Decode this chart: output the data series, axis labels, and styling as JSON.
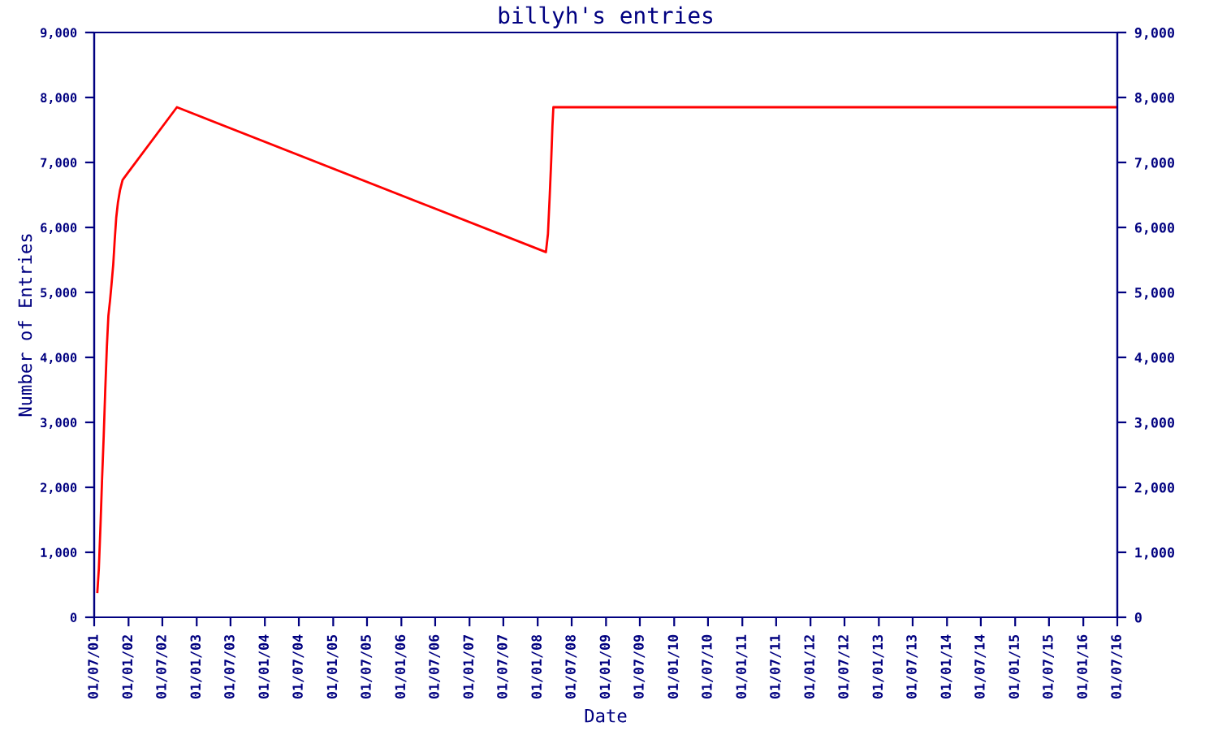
{
  "chart_data": {
    "type": "line",
    "title": "billyh's entries",
    "xlabel": "Date",
    "ylabel": "Number of Entries",
    "x": [
      "2001-07-18",
      "2001-07-26",
      "2001-08-04",
      "2001-08-12",
      "2001-08-21",
      "2001-08-29",
      "2001-09-07",
      "2001-09-15",
      "2001-09-24",
      "2001-10-02",
      "2001-10-11",
      "2001-10-19",
      "2001-10-27",
      "2001-11-05",
      "2001-11-16",
      "2001-11-30",
      "2001-12-23",
      "2002-09-17",
      "2008-02-14",
      "2008-02-25",
      "2008-03-05",
      "2008-03-13",
      "2008-03-20",
      "2008-03-25",
      "2016-07-01"
    ],
    "series": [
      {
        "color": "#ff0000",
        "values": [
          390,
          750,
          1430,
          2110,
          2790,
          3480,
          4170,
          4640,
          4880,
          5130,
          5430,
          5810,
          6150,
          6380,
          6570,
          6730,
          6820,
          7850,
          5620,
          5900,
          6460,
          7000,
          7560,
          7850,
          7850
        ]
      }
    ],
    "xlim": [
      "2001-07-01",
      "2016-07-01"
    ],
    "xticks": [
      {
        "value": "2001-07-01",
        "label": "01/07/01"
      },
      {
        "value": "2002-01-01",
        "label": "01/01/02"
      },
      {
        "value": "2002-07-01",
        "label": "01/07/02"
      },
      {
        "value": "2003-01-01",
        "label": "01/01/03"
      },
      {
        "value": "2003-07-01",
        "label": "01/07/03"
      },
      {
        "value": "2004-01-01",
        "label": "01/01/04"
      },
      {
        "value": "2004-07-01",
        "label": "01/07/04"
      },
      {
        "value": "2005-01-01",
        "label": "01/01/05"
      },
      {
        "value": "2005-07-01",
        "label": "01/07/05"
      },
      {
        "value": "2006-01-01",
        "label": "01/01/06"
      },
      {
        "value": "2006-07-01",
        "label": "01/07/06"
      },
      {
        "value": "2007-01-01",
        "label": "01/01/07"
      },
      {
        "value": "2007-07-01",
        "label": "01/07/07"
      },
      {
        "value": "2008-01-01",
        "label": "01/01/08"
      },
      {
        "value": "2008-07-01",
        "label": "01/07/08"
      },
      {
        "value": "2009-01-01",
        "label": "01/01/09"
      },
      {
        "value": "2009-07-01",
        "label": "01/07/09"
      },
      {
        "value": "2010-01-01",
        "label": "01/01/10"
      },
      {
        "value": "2010-07-01",
        "label": "01/07/10"
      },
      {
        "value": "2011-01-01",
        "label": "01/01/11"
      },
      {
        "value": "2011-07-01",
        "label": "01/07/11"
      },
      {
        "value": "2012-01-01",
        "label": "01/01/12"
      },
      {
        "value": "2012-07-01",
        "label": "01/07/12"
      },
      {
        "value": "2013-01-01",
        "label": "01/01/13"
      },
      {
        "value": "2013-07-01",
        "label": "01/07/13"
      },
      {
        "value": "2014-01-01",
        "label": "01/01/14"
      },
      {
        "value": "2014-07-01",
        "label": "01/07/14"
      },
      {
        "value": "2015-01-01",
        "label": "01/01/15"
      },
      {
        "value": "2015-07-01",
        "label": "01/07/15"
      },
      {
        "value": "2016-01-01",
        "label": "01/01/16"
      },
      {
        "value": "2016-07-01",
        "label": "01/07/16"
      }
    ],
    "ylim": [
      0,
      9000
    ],
    "yticks": [
      0,
      {
        "value": 1000,
        "label": "1,000"
      },
      {
        "value": 2000,
        "label": "2,000"
      },
      {
        "value": 3000,
        "label": "3,000"
      },
      {
        "value": 4000,
        "label": "4,000"
      },
      {
        "value": 5000,
        "label": "5,000"
      },
      {
        "value": 6000,
        "label": "6,000"
      },
      {
        "value": 7000,
        "label": "7,000"
      },
      {
        "value": 8000,
        "label": "8,000"
      },
      {
        "value": 9000,
        "label": "9,000"
      }
    ],
    "y2lim": [
      0,
      9000
    ],
    "y2ticks": [
      0,
      {
        "value": 1000,
        "label": "1,000"
      },
      {
        "value": 2000,
        "label": "2,000"
      },
      {
        "value": 3000,
        "label": "3,000"
      },
      {
        "value": 4000,
        "label": "4,000"
      },
      {
        "value": 5000,
        "label": "5,000"
      },
      {
        "value": 6000,
        "label": "6,000"
      },
      {
        "value": 7000,
        "label": "7,000"
      },
      {
        "value": 8000,
        "label": "8,000"
      },
      {
        "value": 9000,
        "label": "9,000"
      }
    ],
    "grid": false,
    "marker": "none",
    "line_style": "solid"
  }
}
